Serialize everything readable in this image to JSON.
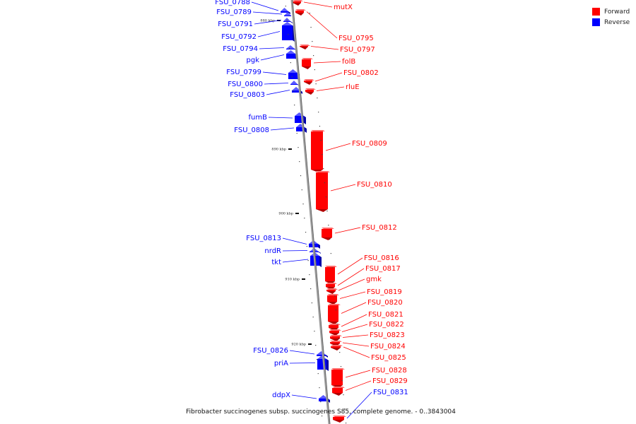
{
  "legend": {
    "forward_label": "Forward",
    "reverse_label": "Reverse",
    "forward_color": "#ff0000",
    "reverse_color": "#0000ff"
  },
  "caption": "Fibrobacter succinogenes subsp. succinogenes S85, complete genome. - 0..3843004",
  "axis_ticks": [
    {
      "kbp": 880,
      "label": "880 kbp"
    },
    {
      "kbp": 890,
      "label": "890 kbp"
    },
    {
      "kbp": 900,
      "label": "900 kbp"
    },
    {
      "kbp": 910,
      "label": "910 kbp"
    },
    {
      "kbp": 920,
      "label": "920 kbp"
    }
  ],
  "reverse_genes": [
    {
      "label": "FSU_0788"
    },
    {
      "label": "FSU_0789"
    },
    {
      "label": "FSU_0791"
    },
    {
      "label": "FSU_0792"
    },
    {
      "label": "FSU_0794"
    },
    {
      "label": "pgk"
    },
    {
      "label": "FSU_0799"
    },
    {
      "label": "FSU_0800"
    },
    {
      "label": "FSU_0803"
    },
    {
      "label": "fumB"
    },
    {
      "label": "FSU_0808"
    },
    {
      "label": "FSU_0813"
    },
    {
      "label": "nrdR"
    },
    {
      "label": "tkt"
    },
    {
      "label": "FSU_0826"
    },
    {
      "label": "priA"
    },
    {
      "label": "ddpX"
    }
  ],
  "forward_genes": [
    {
      "label": "mutX"
    },
    {
      "label": "FSU_0795"
    },
    {
      "label": "FSU_0797"
    },
    {
      "label": "folB"
    },
    {
      "label": "FSU_0802"
    },
    {
      "label": "rluE"
    },
    {
      "label": "FSU_0809"
    },
    {
      "label": "FSU_0810"
    },
    {
      "label": "FSU_0812"
    },
    {
      "label": "FSU_0816"
    },
    {
      "label": "FSU_0817"
    },
    {
      "label": "gmk"
    },
    {
      "label": "FSU_0819"
    },
    {
      "label": "FSU_0820"
    },
    {
      "label": "FSU_0821"
    },
    {
      "label": "FSU_0822"
    },
    {
      "label": "FSU_0823"
    },
    {
      "label": "FSU_0824"
    },
    {
      "label": "FSU_0825"
    },
    {
      "label": "FSU_0828"
    },
    {
      "label": "FSU_0829"
    },
    {
      "label": "FSU_0831"
    }
  ]
}
